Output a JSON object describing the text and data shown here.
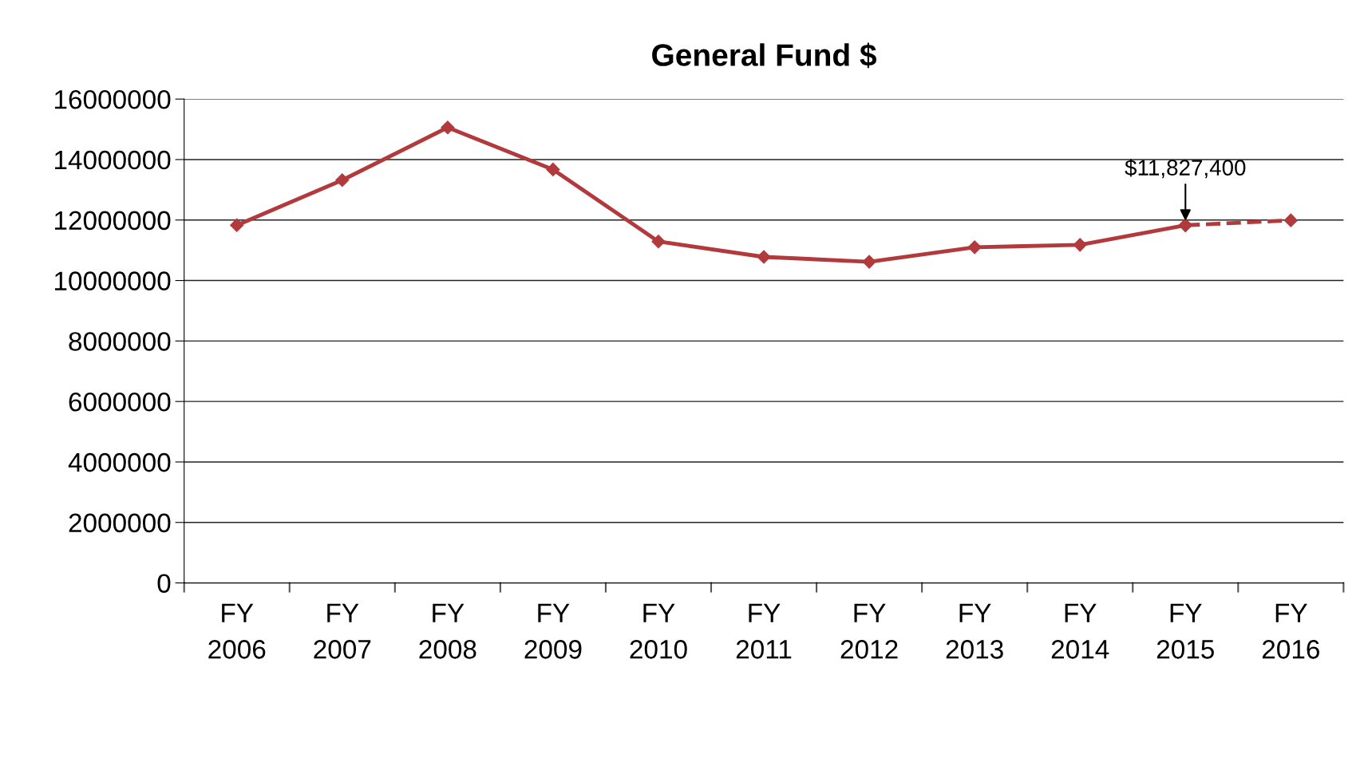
{
  "chart_data": {
    "type": "line",
    "title": "General Fund $",
    "categories": [
      "FY 2006",
      "FY 2007",
      "FY 2008",
      "FY 2009",
      "FY 2010",
      "FY 2011",
      "FY 2012",
      "FY 2013",
      "FY 2014",
      "FY 2015",
      "FY 2016"
    ],
    "series": [
      {
        "color": "#b23a3c",
        "values": [
          11830000,
          13320000,
          15060000,
          13670000,
          11290000,
          10780000,
          10620000,
          11100000,
          11180000,
          11827400,
          null
        ],
        "line_style": "solid"
      },
      {
        "color": "#b23a3c",
        "values": [
          null,
          null,
          null,
          null,
          null,
          null,
          null,
          null,
          null,
          11827400,
          11990000
        ],
        "line_style": "dashed"
      }
    ],
    "ylim": [
      0,
      16000000
    ],
    "yticks": [
      0,
      2000000,
      4000000,
      6000000,
      8000000,
      10000000,
      12000000,
      14000000,
      16000000
    ],
    "grid": "y",
    "marker": "diamond",
    "legend": false,
    "annotations": [
      {
        "text": "$11,827,400",
        "x": "FY 2015",
        "y": 11827400
      }
    ]
  }
}
